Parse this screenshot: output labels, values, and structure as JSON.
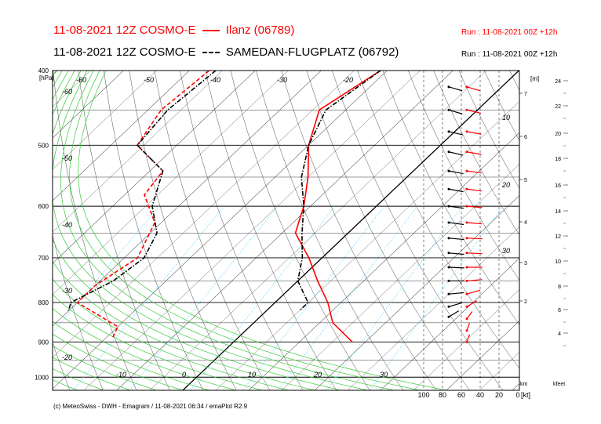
{
  "header": {
    "line1": {
      "model": "11-08-2021 12Z COSMO-E",
      "station": "Ilanz (06789)",
      "run": "Run : 11-08-2021 00Z +12h"
    },
    "line2": {
      "model": "11-08-2021 12Z COSMO-E",
      "station": "SAMEDAN-FLUGPLATZ (06792)",
      "run": "Run : 11-08-2021 00Z +12h"
    },
    "footer": "(c) MeteoSwiss - DWH - Emagram / 11-08-2021 06:34 / emaPlot R2.9"
  },
  "colors": {
    "ilanz": "#ff0000",
    "samedan": "#000000",
    "dry_adiabat": "#000000",
    "moist_adiabat": "#33cc33",
    "mixing_ratio": "#33ccff",
    "isotherm": "#000000"
  },
  "chart_data": {
    "type": "line",
    "chart_kind": "emagram",
    "ylabel": "[hPa]",
    "y_ticks": [
      400,
      500,
      600,
      700,
      800,
      900,
      1000
    ],
    "isotherm_labels_top": [
      "-60",
      "-50",
      "-40",
      "-30",
      "-20"
    ],
    "isotherm_labels_left": [
      "-60",
      "-50",
      "-40",
      "-30",
      "-20"
    ],
    "isotherm_labels_bottom": [
      "-10",
      "0",
      "10",
      "20",
      "30"
    ],
    "height_m_label": "[m]",
    "height_km_label": "km",
    "height_km_ticks": [
      "7",
      "6",
      "5",
      "4",
      "3",
      "2"
    ],
    "height_kfeet_label": "kfeet",
    "height_kfeet_ticks": [
      "24",
      "22",
      "20",
      "18",
      "16",
      "14",
      "12",
      "10",
      "8",
      "6",
      "4"
    ],
    "wind_speed_labels": [
      "10",
      "20",
      "30"
    ],
    "wind_axis_ticks": [
      "100",
      "80",
      "60",
      "40",
      "20",
      "0"
    ],
    "wind_axis_unit": "[kt]",
    "series": [
      {
        "name": "Ilanz (06789)",
        "color": "#ff0000",
        "kind": "temperature",
        "points": [
          [
            400,
            -21
          ],
          [
            450,
            -24
          ],
          [
            500,
            -20
          ],
          [
            550,
            -15
          ],
          [
            600,
            -11
          ],
          [
            650,
            -8
          ],
          [
            700,
            -2
          ],
          [
            750,
            3
          ],
          [
            800,
            8
          ],
          [
            850,
            12
          ],
          [
            900,
            18
          ]
        ]
      },
      {
        "name": "Ilanz (06789)",
        "color": "#ff0000",
        "kind": "dewpoint",
        "points": [
          [
            400,
            -47
          ],
          [
            450,
            -48
          ],
          [
            500,
            -46
          ],
          [
            540,
            -38
          ],
          [
            580,
            -37
          ],
          [
            630,
            -31
          ],
          [
            700,
            -28
          ],
          [
            760,
            -30
          ],
          [
            800,
            -30
          ],
          [
            860,
            -20
          ],
          [
            890,
            -19
          ]
        ]
      },
      {
        "name": "SAMEDAN-FLUGPLATZ (06792)",
        "color": "#000000",
        "kind": "temperature",
        "points": [
          [
            400,
            -21
          ],
          [
            450,
            -23
          ],
          [
            500,
            -20
          ],
          [
            550,
            -16
          ],
          [
            600,
            -11
          ],
          [
            650,
            -7
          ],
          [
            700,
            -3
          ],
          [
            750,
            0
          ],
          [
            800,
            5
          ],
          [
            820,
            5
          ]
        ]
      },
      {
        "name": "SAMEDAN-FLUGPLATZ (06792)",
        "color": "#000000",
        "kind": "dewpoint",
        "points": [
          [
            400,
            -46
          ],
          [
            450,
            -47
          ],
          [
            500,
            -46
          ],
          [
            540,
            -38
          ],
          [
            600,
            -34
          ],
          [
            650,
            -29
          ],
          [
            700,
            -27
          ],
          [
            750,
            -28
          ],
          [
            800,
            -31
          ],
          [
            820,
            -30
          ]
        ]
      }
    ],
    "wind_ilanz": [
      {
        "p": 420,
        "dir": 300,
        "kt": 22
      },
      {
        "p": 450,
        "dir": 295,
        "kt": 22
      },
      {
        "p": 480,
        "dir": 290,
        "kt": 22
      },
      {
        "p": 510,
        "dir": 290,
        "kt": 21
      },
      {
        "p": 540,
        "dir": 285,
        "kt": 20
      },
      {
        "p": 570,
        "dir": 285,
        "kt": 20
      },
      {
        "p": 600,
        "dir": 280,
        "kt": 19
      },
      {
        "p": 630,
        "dir": 280,
        "kt": 18
      },
      {
        "p": 660,
        "dir": 275,
        "kt": 17
      },
      {
        "p": 690,
        "dir": 275,
        "kt": 16
      },
      {
        "p": 720,
        "dir": 270,
        "kt": 14
      },
      {
        "p": 750,
        "dir": 260,
        "kt": 12
      },
      {
        "p": 780,
        "dir": 240,
        "kt": 9
      },
      {
        "p": 810,
        "dir": 220,
        "kt": 7
      },
      {
        "p": 840,
        "dir": 200,
        "kt": 6
      },
      {
        "p": 870,
        "dir": 190,
        "kt": 5
      },
      {
        "p": 900,
        "dir": 190,
        "kt": 4
      }
    ],
    "wind_samedan": [
      {
        "p": 420,
        "dir": 300,
        "kt": 18
      },
      {
        "p": 450,
        "dir": 300,
        "kt": 18
      },
      {
        "p": 480,
        "dir": 295,
        "kt": 17
      },
      {
        "p": 510,
        "dir": 295,
        "kt": 17
      },
      {
        "p": 540,
        "dir": 290,
        "kt": 16
      },
      {
        "p": 570,
        "dir": 290,
        "kt": 15
      },
      {
        "p": 600,
        "dir": 285,
        "kt": 14
      },
      {
        "p": 630,
        "dir": 285,
        "kt": 13
      },
      {
        "p": 660,
        "dir": 280,
        "kt": 12
      },
      {
        "p": 690,
        "dir": 280,
        "kt": 11
      },
      {
        "p": 720,
        "dir": 275,
        "kt": 10
      },
      {
        "p": 750,
        "dir": 270,
        "kt": 8
      },
      {
        "p": 780,
        "dir": 260,
        "kt": 6
      },
      {
        "p": 810,
        "dir": 240,
        "kt": 4
      },
      {
        "p": 835,
        "dir": 220,
        "kt": 3
      }
    ]
  }
}
